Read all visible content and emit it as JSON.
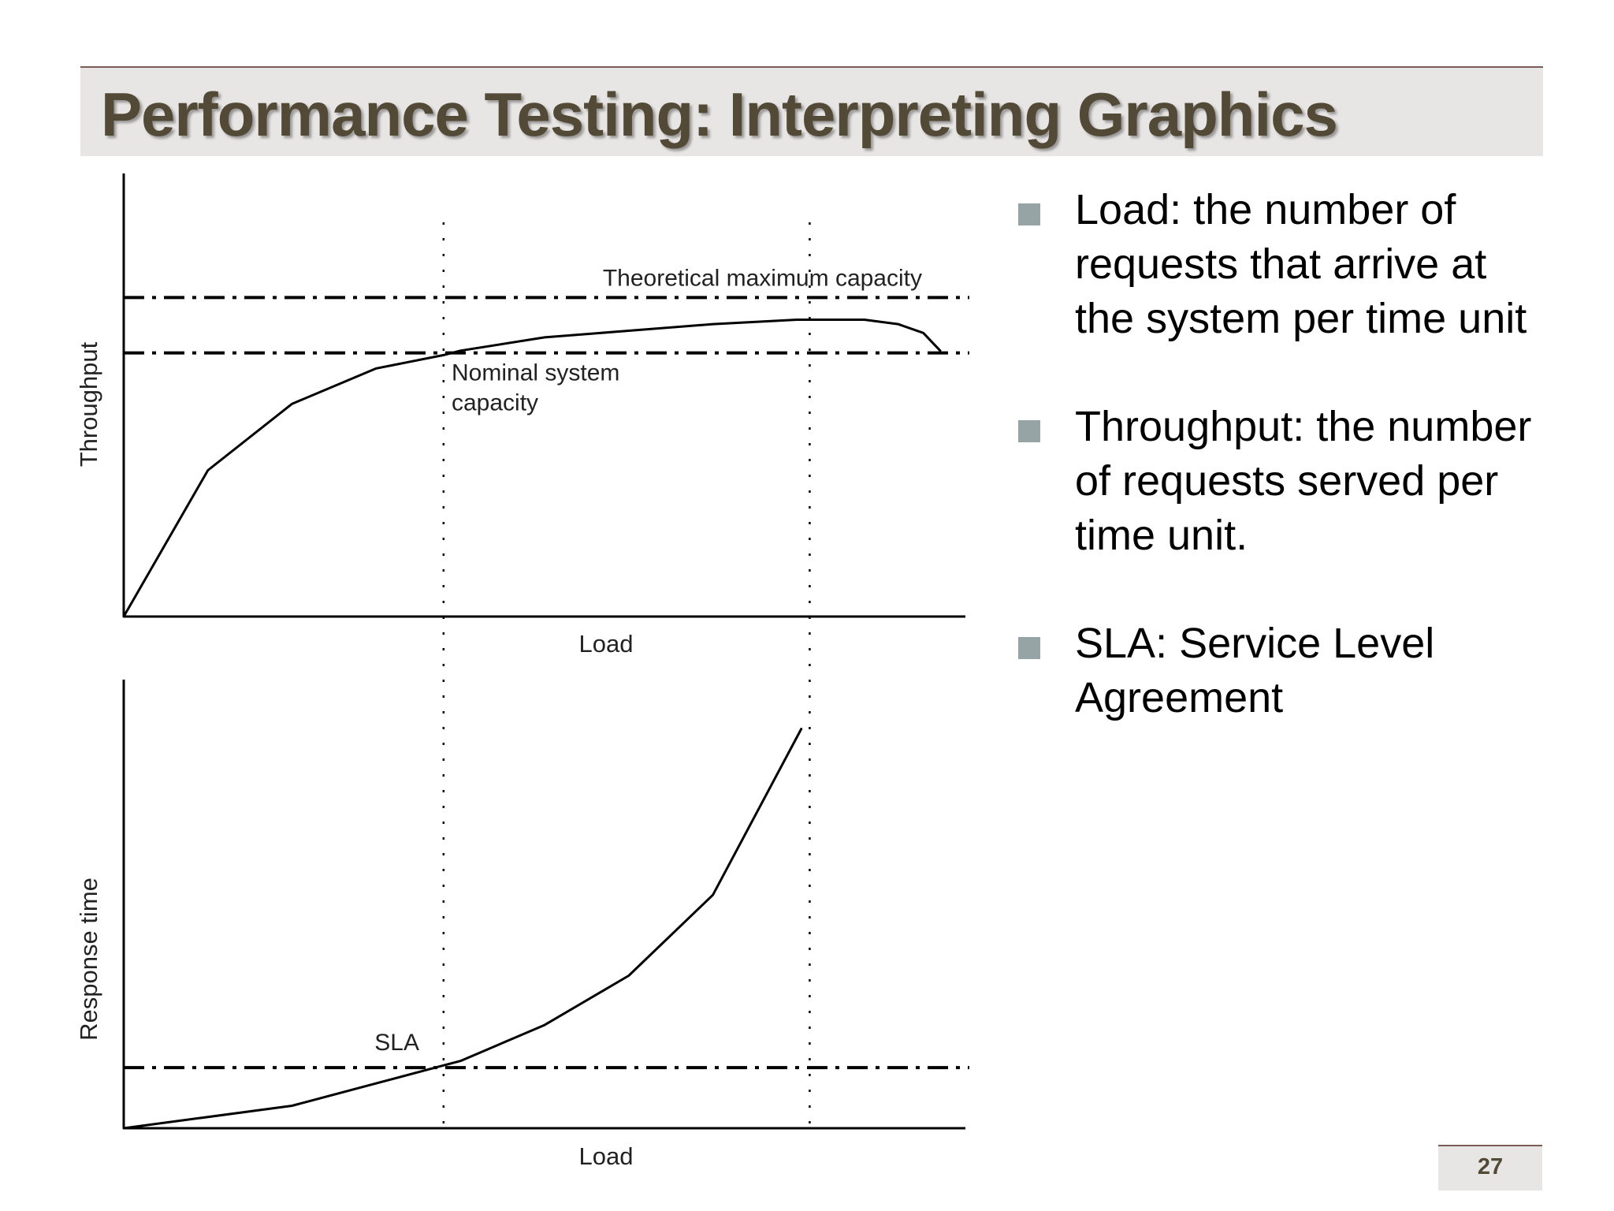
{
  "slide": {
    "title": "Performance Testing: Interpreting Graphics",
    "page_number": "27",
    "colors": {
      "title_band": "#e8e6e5",
      "title_text": "#524a36",
      "rule": "#7a5a55",
      "bullet_marker": "#97a4a5"
    }
  },
  "bullets": [
    {
      "text": "Load: the number of requests that arrive at the system per time unit"
    },
    {
      "text": "Throughput: the number of requests served per time unit."
    },
    {
      "text": "SLA: Service Level Agreement"
    }
  ],
  "chart_data": [
    {
      "type": "line",
      "xlabel": "Load",
      "ylabel": "Throughput",
      "xlim": [
        0,
        100
      ],
      "ylim": [
        0,
        100
      ],
      "series": [
        {
          "x": [
            0,
            10,
            20,
            30,
            38,
            40,
            50,
            60,
            70,
            80,
            86,
            88,
            92,
            95,
            97
          ],
          "y": [
            0,
            33,
            48,
            56,
            59,
            60,
            63,
            64.5,
            66,
            67,
            67,
            67,
            66,
            64,
            60
          ]
        }
      ],
      "reference_lines": [
        {
          "label": "Theoretical maximum capacity",
          "y": 72
        },
        {
          "label": "Nominal system capacity",
          "y": 59.5
        }
      ],
      "vertical_markers": [
        38,
        81.5
      ],
      "grid": false
    },
    {
      "type": "line",
      "xlabel": "Load",
      "ylabel": "Response time",
      "xlim": [
        0,
        100
      ],
      "ylim": [
        0,
        100
      ],
      "series": [
        {
          "x": [
            0,
            20,
            30,
            38,
            40,
            50,
            60,
            70,
            80.5
          ],
          "y": [
            0,
            5,
            10,
            14,
            15,
            23,
            34,
            52,
            89
          ]
        }
      ],
      "reference_lines": [
        {
          "label": "SLA",
          "y": 13.5
        }
      ],
      "vertical_markers": [
        38,
        81.5
      ],
      "grid": false
    }
  ]
}
